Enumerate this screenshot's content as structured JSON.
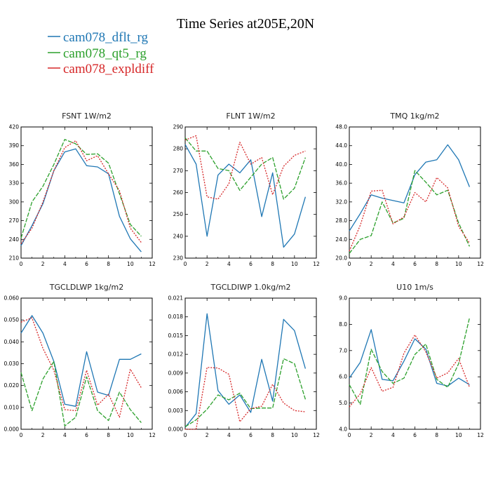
{
  "title": "Time Series at205E,20N",
  "legend": [
    {
      "name": "cam078_dflt_rg",
      "color": "#1f77b4",
      "dash": "solid"
    },
    {
      "name": "cam078_qt5_rg",
      "color": "#2ca02c",
      "dash": "dashed"
    },
    {
      "name": "cam078_expldiff",
      "color": "#d62728",
      "dash": "dotted"
    }
  ],
  "chart_data": [
    {
      "type": "line",
      "title": "FSNT   1W/m2",
      "x": [
        0,
        1,
        2,
        3,
        4,
        5,
        6,
        7,
        8,
        9,
        10,
        11
      ],
      "xlim": [
        0,
        12
      ],
      "xticks": [
        "0",
        "2",
        "4",
        "6",
        "8",
        "10",
        "12"
      ],
      "ylim": [
        210,
        420
      ],
      "yticks": [
        "210",
        "240",
        "270",
        "300",
        "330",
        "360",
        "390",
        "420"
      ],
      "series": [
        {
          "name": "cam078_dflt_rg",
          "values": [
            230,
            262,
            297,
            350,
            380,
            385,
            358,
            356,
            345,
            277,
            241,
            220
          ]
        },
        {
          "name": "cam078_qt5_rg",
          "values": [
            242,
            300,
            325,
            360,
            400,
            393,
            376,
            377,
            362,
            313,
            264,
            245
          ]
        },
        {
          "name": "cam078_expldiff",
          "values": [
            233,
            258,
            300,
            350,
            387,
            398,
            366,
            374,
            345,
            318,
            258,
            235
          ]
        }
      ]
    },
    {
      "type": "line",
      "title": "FLNT   1W/m2",
      "x": [
        0,
        1,
        2,
        3,
        4,
        5,
        6,
        7,
        8,
        9,
        10,
        11
      ],
      "xlim": [
        0,
        12
      ],
      "xticks": [
        "0",
        "2",
        "4",
        "6",
        "8",
        "10",
        "12"
      ],
      "ylim": [
        230,
        290
      ],
      "yticks": [
        "230",
        "240",
        "250",
        "260",
        "270",
        "280",
        "290"
      ],
      "series": [
        {
          "name": "cam078_dflt_rg",
          "values": [
            282,
            273,
            240,
            268,
            273,
            269,
            275,
            249,
            269,
            235,
            241,
            258
          ]
        },
        {
          "name": "cam078_qt5_rg",
          "values": [
            285,
            279,
            279,
            271,
            270,
            261,
            267,
            273,
            276,
            257,
            262,
            276
          ]
        },
        {
          "name": "cam078_expldiff",
          "values": [
            284,
            286,
            258,
            257,
            264,
            283,
            273,
            276,
            259,
            272,
            277,
            279
          ]
        }
      ]
    },
    {
      "type": "line",
      "title": "TMQ   1kg/m2",
      "x": [
        0,
        1,
        2,
        3,
        4,
        5,
        6,
        7,
        8,
        9,
        10,
        11
      ],
      "xlim": [
        0,
        12
      ],
      "xticks": [
        "0",
        "2",
        "4",
        "6",
        "8",
        "10",
        "12"
      ],
      "ylim": [
        20,
        48
      ],
      "yticks": [
        "20.0",
        "24.0",
        "28.0",
        "32.0",
        "36.0",
        "40.0",
        "44.0",
        "48.0"
      ],
      "series": [
        {
          "name": "cam078_dflt_rg",
          "values": [
            25.8,
            29.5,
            33.5,
            32.8,
            32.3,
            31.8,
            37.8,
            40.5,
            41,
            44.2,
            41,
            35.2
          ]
        },
        {
          "name": "cam078_qt5_rg",
          "values": [
            21,
            24,
            24.8,
            32,
            27.5,
            28.5,
            38.7,
            36.2,
            33.5,
            34.5,
            27.5,
            22.5
          ]
        },
        {
          "name": "cam078_expldiff",
          "values": [
            21.5,
            27,
            34.3,
            34.5,
            27.3,
            28.8,
            34,
            32,
            37.2,
            35,
            26.8,
            23.2
          ]
        }
      ]
    },
    {
      "type": "line",
      "title": "TGCLDLWP   1kg/m2",
      "x": [
        0,
        1,
        2,
        3,
        4,
        5,
        6,
        7,
        8,
        9,
        10,
        11
      ],
      "xlim": [
        0,
        12
      ],
      "xticks": [
        "0",
        "2",
        "4",
        "6",
        "8",
        "10",
        "12"
      ],
      "ylim": [
        0,
        0.06
      ],
      "yticks": [
        "0.000",
        "0.010",
        "0.020",
        "0.030",
        "0.040",
        "0.050",
        "0.060"
      ],
      "series": [
        {
          "name": "cam078_dflt_rg",
          "values": [
            0.044,
            0.052,
            0.044,
            0.031,
            0.0115,
            0.0105,
            0.0355,
            0.017,
            0.0155,
            0.032,
            0.032,
            0.0345
          ]
        },
        {
          "name": "cam078_qt5_rg",
          "values": [
            0.026,
            0.0085,
            0.023,
            0.031,
            0.0015,
            0.0055,
            0.024,
            0.0085,
            0.004,
            0.017,
            0.009,
            0.003
          ]
        },
        {
          "name": "cam078_expldiff",
          "values": [
            0.049,
            0.051,
            0.037,
            0.027,
            0.009,
            0.0085,
            0.027,
            0.011,
            0.016,
            0.0055,
            0.0275,
            0.019
          ]
        }
      ]
    },
    {
      "type": "line",
      "title": "TGCLDIWP   1.0kg/m2",
      "x": [
        0,
        1,
        2,
        3,
        4,
        5,
        6,
        7,
        8,
        9,
        10,
        11
      ],
      "xlim": [
        0,
        12
      ],
      "xticks": [
        "0",
        "2",
        "4",
        "6",
        "8",
        "10",
        "12"
      ],
      "ylim": [
        0,
        0.021
      ],
      "yticks": [
        "0.000",
        "0.003",
        "0.006",
        "0.009",
        "0.012",
        "0.015",
        "0.018",
        "0.021"
      ],
      "series": [
        {
          "name": "cam078_dflt_rg",
          "values": [
            0.0003,
            0.0025,
            0.0185,
            0.0062,
            0.004,
            0.0055,
            0.0027,
            0.0112,
            0.0045,
            0.0176,
            0.0158,
            0.0097
          ]
        },
        {
          "name": "cam078_qt5_rg",
          "values": [
            0.0004,
            0.0015,
            0.0032,
            0.0055,
            0.0047,
            0.0058,
            0.0033,
            0.0034,
            0.0034,
            0.0113,
            0.0105,
            0.0048
          ]
        },
        {
          "name": "cam078_expldiff",
          "values": [
            0,
            0,
            0.0099,
            0.0098,
            0.0088,
            0.0012,
            0.0033,
            0.0037,
            0.0072,
            0.0042,
            0.003,
            0.0028
          ]
        }
      ]
    },
    {
      "type": "line",
      "title": "U10   1m/s",
      "x": [
        0,
        1,
        2,
        3,
        4,
        5,
        6,
        7,
        8,
        9,
        10,
        11
      ],
      "xlim": [
        0,
        12
      ],
      "xticks": [
        "0",
        "2",
        "4",
        "6",
        "8",
        "10",
        "12"
      ],
      "ylim": [
        4,
        9
      ],
      "yticks": [
        "4.0",
        "5.0",
        "6.0",
        "7.0",
        "8.0",
        "9.0"
      ],
      "series": [
        {
          "name": "cam078_dflt_rg",
          "values": [
            5.95,
            6.55,
            7.8,
            5.9,
            5.85,
            6.6,
            7.45,
            7.05,
            5.75,
            5.65,
            5.95,
            5.7
          ]
        },
        {
          "name": "cam078_qt5_rg",
          "values": [
            5.7,
            4.95,
            7.05,
            6.2,
            5.75,
            5.95,
            6.85,
            7.25,
            5.9,
            5.6,
            6.5,
            8.25
          ]
        },
        {
          "name": "cam078_expldiff",
          "values": [
            4.85,
            5.35,
            6.35,
            5.45,
            5.6,
            6.9,
            7.6,
            6.95,
            5.95,
            6.15,
            6.7,
            5.6
          ]
        }
      ]
    }
  ]
}
